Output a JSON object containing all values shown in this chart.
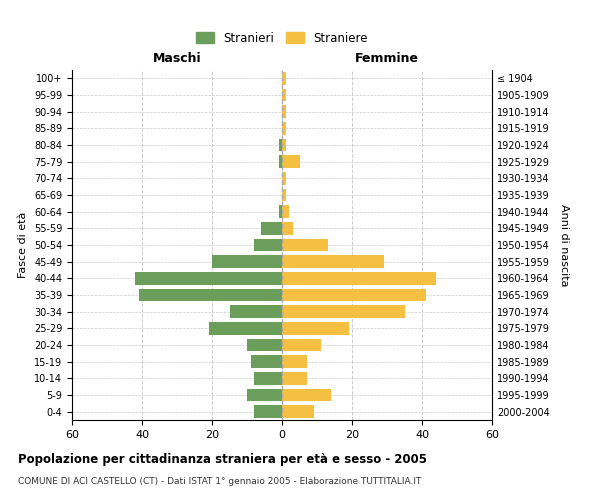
{
  "age_groups": [
    "100+",
    "95-99",
    "90-94",
    "85-89",
    "80-84",
    "75-79",
    "70-74",
    "65-69",
    "60-64",
    "55-59",
    "50-54",
    "45-49",
    "40-44",
    "35-39",
    "30-34",
    "25-29",
    "20-24",
    "15-19",
    "10-14",
    "5-9",
    "0-4"
  ],
  "birth_years": [
    "≤ 1904",
    "1905-1909",
    "1910-1914",
    "1915-1919",
    "1920-1924",
    "1925-1929",
    "1930-1934",
    "1935-1939",
    "1940-1944",
    "1945-1949",
    "1950-1954",
    "1955-1959",
    "1960-1964",
    "1965-1969",
    "1970-1974",
    "1975-1979",
    "1980-1984",
    "1985-1989",
    "1990-1994",
    "1995-1999",
    "2000-2004"
  ],
  "males": [
    0,
    0,
    0,
    0,
    1,
    1,
    0,
    0,
    1,
    6,
    8,
    20,
    42,
    41,
    15,
    21,
    10,
    9,
    8,
    10,
    8
  ],
  "females": [
    1,
    1,
    1,
    1,
    1,
    5,
    1,
    1,
    2,
    3,
    13,
    29,
    44,
    41,
    35,
    19,
    11,
    7,
    7,
    14,
    9
  ],
  "male_color": "#6a9e5a",
  "female_color": "#f5c042",
  "title_main": "Popolazione per cittadinanza straniera per età e sesso - 2005",
  "title_sub": "COMUNE DI ACI CASTELLO (CT) - Dati ISTAT 1° gennaio 2005 - Elaborazione TUTTITALIA.IT",
  "xlabel_left": "Maschi",
  "xlabel_right": "Femmine",
  "ylabel_left": "Fasce di età",
  "ylabel_right": "Anni di nascita",
  "legend_male": "Stranieri",
  "legend_female": "Straniere",
  "xlim": 60,
  "background_color": "#ffffff",
  "grid_color": "#cccccc"
}
